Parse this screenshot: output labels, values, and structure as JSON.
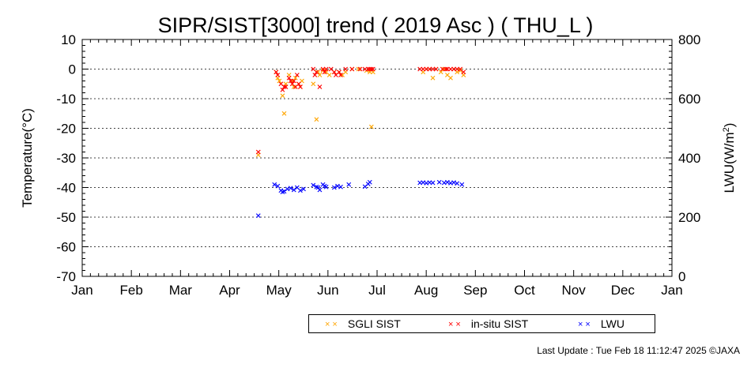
{
  "chart_data": {
    "type": "scatter",
    "title": "SIPR/SIST[3000] trend ( 2019 Asc ) ( THU_L )",
    "x_tick_labels": [
      "Jan",
      "Feb",
      "Mar",
      "Apr",
      "May",
      "Jun",
      "Jul",
      "Aug",
      "Sep",
      "Oct",
      "Nov",
      "Dec",
      "Jan"
    ],
    "x_range_days": [
      0,
      365
    ],
    "ylabel_left": "Temperature(°C)",
    "ylim_left": [
      -70,
      10
    ],
    "yticks_left": [
      "10",
      "0",
      "-10",
      "-20",
      "-30",
      "-40",
      "-50",
      "-60",
      "-70"
    ],
    "ylabel_right_main": "LWU(W/m",
    "ylabel_right_sup": "2",
    "ylabel_right_tail": ")",
    "ylim_right": [
      0,
      800
    ],
    "yticks_right": [
      "800",
      "600",
      "400",
      "200",
      "0"
    ],
    "grid": "horizontal dotted at major ticks",
    "legend_position": "bottom",
    "series": [
      {
        "name": "SGLI SIST",
        "color": "#ffa500",
        "axis": "left",
        "points": [
          [
            109,
            -29
          ],
          [
            120,
            -1
          ],
          [
            121,
            -3
          ],
          [
            122,
            -4
          ],
          [
            124,
            -9
          ],
          [
            125,
            -15
          ],
          [
            126,
            -5
          ],
          [
            128,
            -2
          ],
          [
            130,
            -4
          ],
          [
            131,
            -6
          ],
          [
            132,
            -3
          ],
          [
            134,
            -5
          ],
          [
            135,
            -6
          ],
          [
            136,
            -4
          ],
          [
            143,
            -5
          ],
          [
            145,
            -17
          ],
          [
            146,
            -1
          ],
          [
            147,
            -2
          ],
          [
            149,
            -0.5
          ],
          [
            151,
            -1
          ],
          [
            153,
            -2
          ],
          [
            156,
            -1
          ],
          [
            159,
            -1
          ],
          [
            161,
            -2
          ],
          [
            163,
            -1
          ],
          [
            167,
            0
          ],
          [
            171,
            0
          ],
          [
            176,
            -0.5
          ],
          [
            178,
            -1
          ],
          [
            179,
            -19.5
          ],
          [
            180,
            -1
          ],
          [
            211,
            -1
          ],
          [
            213,
            0
          ],
          [
            215,
            0
          ],
          [
            217,
            -3
          ],
          [
            219,
            0
          ],
          [
            222,
            -1
          ],
          [
            224,
            0
          ],
          [
            226,
            -2
          ],
          [
            228,
            -3
          ],
          [
            230,
            0
          ],
          [
            232,
            -1
          ],
          [
            234,
            -0.5
          ],
          [
            236,
            -2
          ]
        ]
      },
      {
        "name": "in-situ SIST",
        "color": "#ff0000",
        "axis": "left",
        "points": [
          [
            109,
            -28
          ],
          [
            120,
            -1
          ],
          [
            121,
            -2
          ],
          [
            123,
            -5
          ],
          [
            124,
            -7
          ],
          [
            125,
            -6
          ],
          [
            126,
            -6
          ],
          [
            128,
            -3
          ],
          [
            129,
            -4
          ],
          [
            130,
            -5
          ],
          [
            131,
            -4
          ],
          [
            132,
            -6
          ],
          [
            133,
            -2
          ],
          [
            134,
            -5
          ],
          [
            135,
            -6
          ],
          [
            143,
            0
          ],
          [
            144,
            -2
          ],
          [
            145,
            -1
          ],
          [
            147,
            -6
          ],
          [
            149,
            0
          ],
          [
            150,
            -1
          ],
          [
            151,
            0
          ],
          [
            154,
            0
          ],
          [
            156,
            -1
          ],
          [
            157,
            -2
          ],
          [
            159,
            -1
          ],
          [
            160,
            -2
          ],
          [
            163,
            0
          ],
          [
            167,
            0
          ],
          [
            172,
            0
          ],
          [
            175,
            0
          ],
          [
            177,
            0
          ],
          [
            178,
            0
          ],
          [
            179,
            0
          ],
          [
            180,
            0
          ],
          [
            209,
            0
          ],
          [
            211,
            0
          ],
          [
            213,
            0
          ],
          [
            215,
            0
          ],
          [
            217,
            0
          ],
          [
            219,
            0
          ],
          [
            223,
            0
          ],
          [
            225,
            0
          ],
          [
            226,
            0
          ],
          [
            228,
            0
          ],
          [
            230,
            0
          ],
          [
            232,
            0
          ],
          [
            234,
            0
          ],
          [
            236,
            -1
          ]
        ]
      },
      {
        "name": "LWU",
        "color": "#0000ff",
        "axis": "right",
        "points": [
          [
            109,
            205
          ],
          [
            119,
            310
          ],
          [
            121,
            305
          ],
          [
            123,
            290
          ],
          [
            124,
            285
          ],
          [
            125,
            287
          ],
          [
            127,
            295
          ],
          [
            129,
            298
          ],
          [
            131,
            292
          ],
          [
            133,
            300
          ],
          [
            135,
            290
          ],
          [
            137,
            295
          ],
          [
            143,
            308
          ],
          [
            145,
            302
          ],
          [
            146,
            300
          ],
          [
            147,
            292
          ],
          [
            149,
            310
          ],
          [
            150,
            305
          ],
          [
            151,
            302
          ],
          [
            156,
            300
          ],
          [
            158,
            305
          ],
          [
            160,
            302
          ],
          [
            165,
            310
          ],
          [
            175,
            303
          ],
          [
            177,
            312
          ],
          [
            178,
            318
          ],
          [
            209,
            316
          ],
          [
            211,
            317
          ],
          [
            213,
            315
          ],
          [
            215,
            317
          ],
          [
            217,
            316
          ],
          [
            221,
            318
          ],
          [
            224,
            316
          ],
          [
            226,
            318
          ],
          [
            228,
            315
          ],
          [
            230,
            317
          ],
          [
            232,
            314
          ],
          [
            235,
            310
          ]
        ]
      }
    ]
  },
  "footer": {
    "last_update": "Last Update : Tue Feb 18 11:12:47 2025  ©JAXA"
  }
}
